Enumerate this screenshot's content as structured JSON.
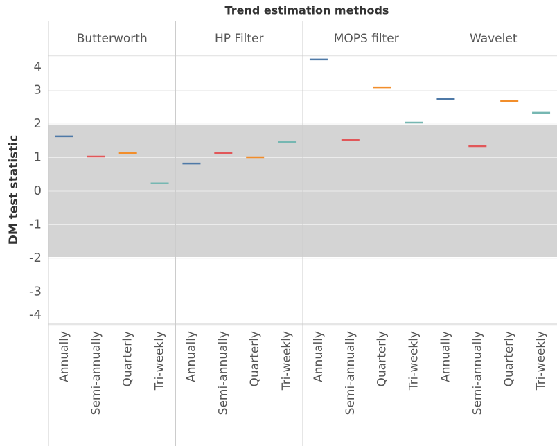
{
  "chart_data": {
    "type": "dash",
    "title": "Trend estimation methods",
    "ylabel": "DM test statistic",
    "categories": [
      "Annually",
      "Semi-annually",
      "Quarterly",
      "Tri-weekly"
    ],
    "colors": [
      "#4e79a7",
      "#e15759",
      "#f28e2b",
      "#76b7b2"
    ],
    "series": [
      {
        "name": "Butterworth",
        "values": [
          1.63,
          1.03,
          1.13,
          0.23
        ]
      },
      {
        "name": "HP Filter",
        "values": [
          0.82,
          1.13,
          1.01,
          1.46
        ]
      },
      {
        "name": "MOPS filter",
        "values": [
          3.92,
          1.53,
          3.09,
          2.04
        ]
      },
      {
        "name": "Wavelet",
        "values": [
          2.74,
          1.34,
          2.68,
          2.33
        ]
      }
    ],
    "band": [
      -1.96,
      1.96
    ],
    "ylim": [
      -3.96,
      4.04
    ],
    "yticks": [
      -4,
      -3,
      -2,
      -1,
      0,
      1,
      2,
      3,
      4
    ],
    "grid": true
  }
}
